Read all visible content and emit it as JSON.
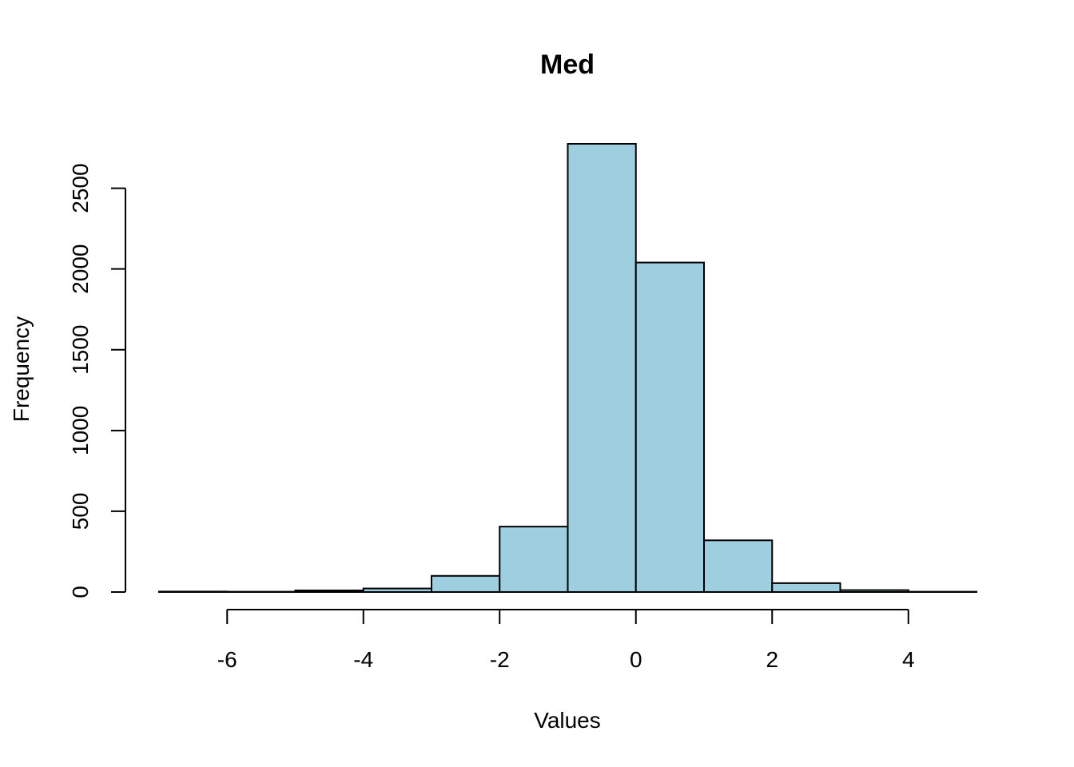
{
  "chart_data": {
    "type": "bar",
    "title": "Med",
    "xlabel": "Values",
    "ylabel": "Frequency",
    "bar_color": "#9ecfe0",
    "bins": [
      {
        "x0": -7,
        "x1": -6,
        "count": 3
      },
      {
        "x0": -6,
        "x1": -5,
        "count": 2
      },
      {
        "x0": -5,
        "x1": -4,
        "count": 10
      },
      {
        "x0": -4,
        "x1": -3,
        "count": 22
      },
      {
        "x0": -3,
        "x1": -2,
        "count": 100
      },
      {
        "x0": -2,
        "x1": -1,
        "count": 405
      },
      {
        "x0": -1,
        "x1": 0,
        "count": 2775
      },
      {
        "x0": 0,
        "x1": 1,
        "count": 2040
      },
      {
        "x0": 1,
        "x1": 2,
        "count": 320
      },
      {
        "x0": 2,
        "x1": 3,
        "count": 55
      },
      {
        "x0": 3,
        "x1": 4,
        "count": 12
      },
      {
        "x0": 4,
        "x1": 5,
        "count": 2
      }
    ],
    "xlim": [
      -7,
      5
    ],
    "ylim": [
      0,
      2775
    ],
    "x_ticks": [
      -6,
      -4,
      -2,
      0,
      2,
      4
    ],
    "x_tick_labels": [
      "-6",
      "-4",
      "-2",
      "0",
      "2",
      "4"
    ],
    "y_ticks": [
      0,
      500,
      1000,
      1500,
      2000,
      2500
    ],
    "y_tick_labels": [
      "0",
      "500",
      "1000",
      "1500",
      "2000",
      "2500"
    ],
    "grid": false,
    "legend": "none"
  }
}
